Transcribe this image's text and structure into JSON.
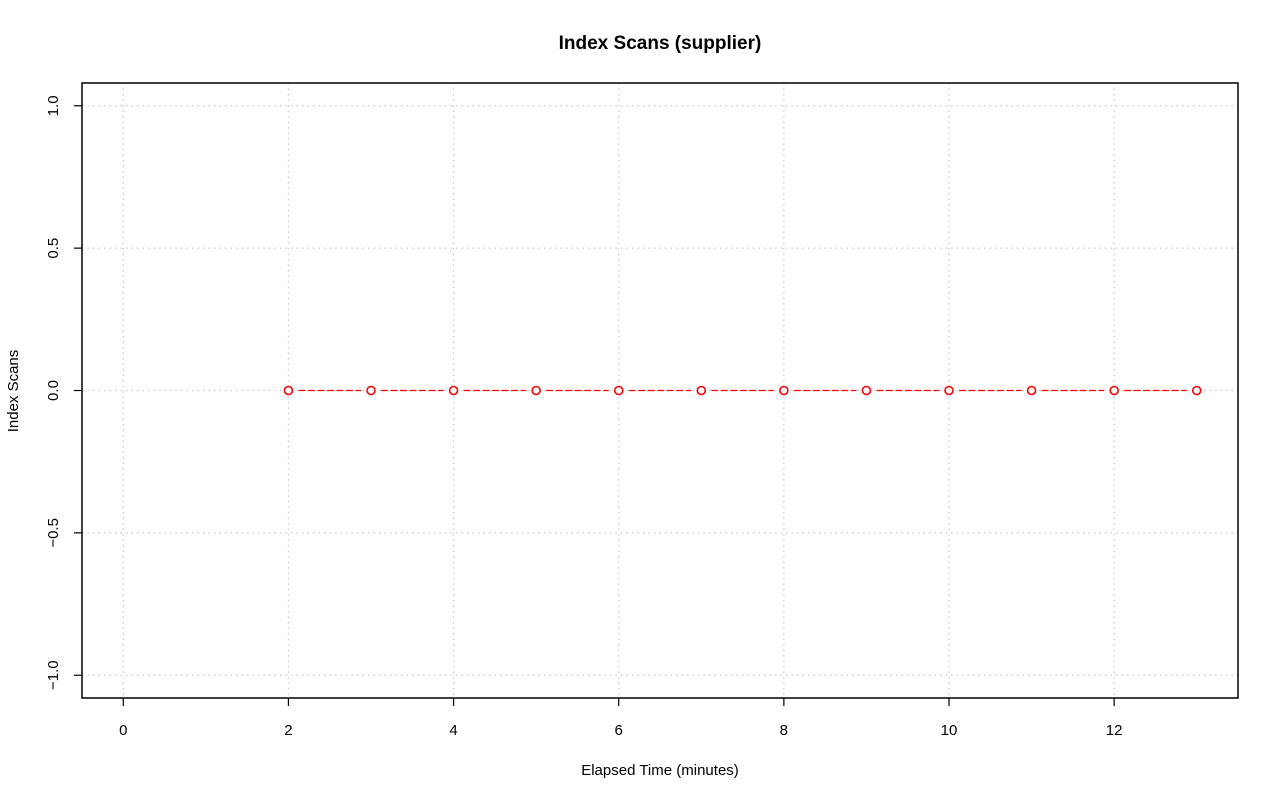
{
  "chart_data": {
    "type": "line",
    "title": "Index Scans (supplier)",
    "xlabel": "Elapsed Time (minutes)",
    "ylabel": "Index Scans",
    "xlim": [
      -0.5,
      13.5
    ],
    "ylim": [
      -1.08,
      1.08
    ],
    "xticks": [
      0,
      2,
      4,
      6,
      8,
      10,
      12
    ],
    "xtick_labels": [
      "0",
      "2",
      "4",
      "6",
      "8",
      "10",
      "12"
    ],
    "yticks": [
      -1.0,
      -0.5,
      0.0,
      0.5,
      1.0
    ],
    "ytick_labels": [
      "−1.0",
      "−0.5",
      "0.0",
      "0.5",
      "1.0"
    ],
    "grid": true,
    "series": [
      {
        "color": "#ff0000",
        "line_style": "dashed",
        "marker": "open-circle",
        "x": [
          2,
          3,
          4,
          5,
          6,
          7,
          8,
          9,
          10,
          11,
          12,
          13
        ],
        "y": [
          0,
          0,
          0,
          0,
          0,
          0,
          0,
          0,
          0,
          0,
          0,
          0
        ]
      }
    ]
  }
}
